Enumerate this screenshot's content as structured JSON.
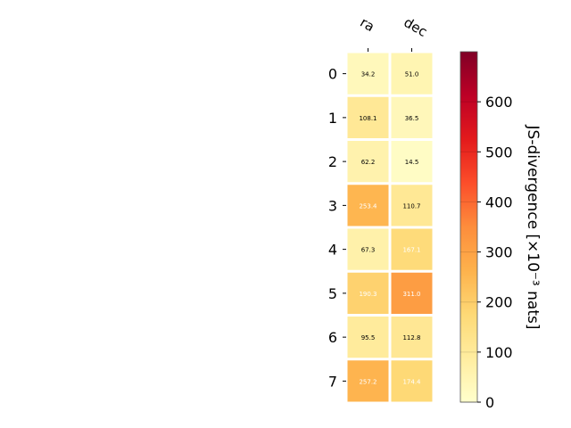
{
  "chart_data": {
    "type": "heatmap",
    "title": "",
    "columns": [
      "ra",
      "dec"
    ],
    "rows": [
      "0",
      "1",
      "2",
      "3",
      "4",
      "5",
      "6",
      "7"
    ],
    "values": [
      [
        34.2,
        51.0
      ],
      [
        108.1,
        36.5
      ],
      [
        62.2,
        14.5
      ],
      [
        253.4,
        110.7
      ],
      [
        67.3,
        167.1
      ],
      [
        190.3,
        311.0
      ],
      [
        95.5,
        112.8
      ],
      [
        257.2,
        174.4
      ]
    ],
    "cell_labels": [
      [
        "34.2",
        "51.0"
      ],
      [
        "108.1",
        "36.5"
      ],
      [
        "62.2",
        "14.5"
      ],
      [
        "253.4",
        "110.7"
      ],
      [
        "67.3",
        "167.1"
      ],
      [
        "190.3",
        "311.0"
      ],
      [
        "95.5",
        "112.8"
      ],
      [
        "257.2",
        "174.4"
      ]
    ],
    "colorbar": {
      "label": "JS-divergence [×10⁻³ nats]",
      "range": [
        0,
        700
      ],
      "ticks": [
        0,
        100,
        200,
        300,
        400,
        500,
        600
      ],
      "tick_labels": [
        "0",
        "100",
        "200",
        "300",
        "400",
        "500",
        "600"
      ],
      "colormap": "YlOrRd"
    },
    "grid": false
  }
}
